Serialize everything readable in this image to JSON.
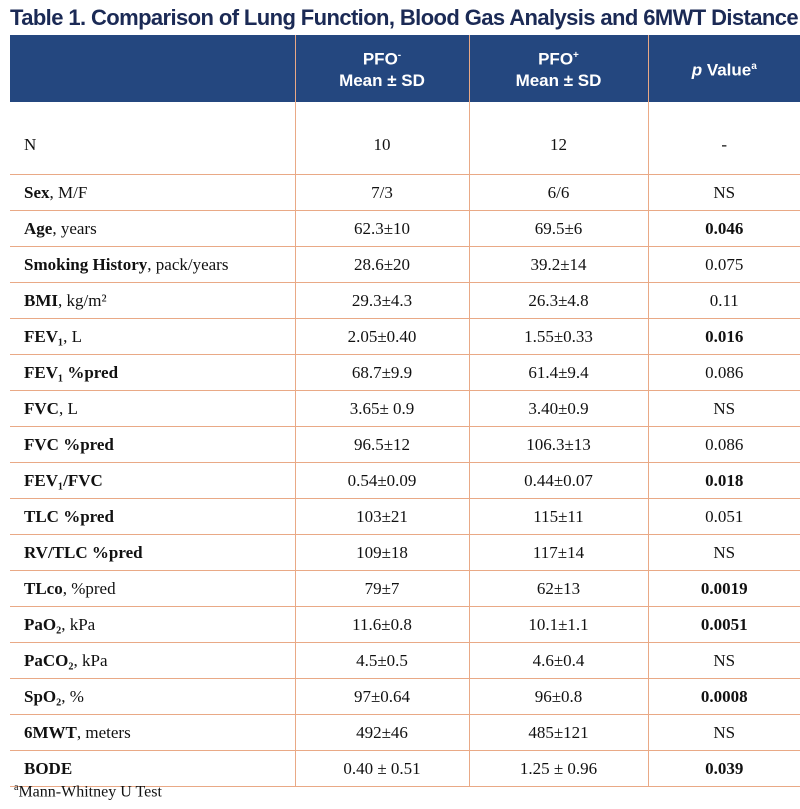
{
  "title": "Table 1. Comparison of Lung Function, Blood Gas Analysis and 6MWT Distance",
  "headers": {
    "col1_line1": "PFO",
    "col1_sup": "-",
    "col1_line2": "Mean ± SD",
    "col2_line1": "PFO",
    "col2_sup": "+",
    "col2_line2": "Mean ± SD",
    "col3_italic": "p",
    "col3_text": " Value",
    "col3_sup": "a"
  },
  "rows": [
    {
      "bold": "",
      "rest": "N",
      "a": "10",
      "b": "12",
      "p": "-",
      "sig": false
    },
    {
      "bold": "Sex",
      "rest": ", M/F",
      "a": "7/3",
      "b": "6/6",
      "p": "NS",
      "sig": false
    },
    {
      "bold": "Age",
      "rest": ", years",
      "a": "62.3±10",
      "b": "69.5±6",
      "p": "0.046",
      "sig": true
    },
    {
      "bold": "Smoking History",
      "rest": ", pack/years",
      "a": "28.6±20",
      "b": "39.2±14",
      "p": "0.075",
      "sig": false
    },
    {
      "bold": "BMI",
      "rest": ", kg/m²",
      "a": "29.3±4.3",
      "b": "26.3±4.8",
      "p": "0.11",
      "sig": false
    },
    {
      "bold": "FEV₁",
      "rest": ", L",
      "a": "2.05±0.40",
      "b": "1.55±0.33",
      "p": "0.016",
      "sig": true
    },
    {
      "bold": "FEV₁ %pred",
      "rest": "",
      "a": "68.7±9.9",
      "b": "61.4±9.4",
      "p": "0.086",
      "sig": false
    },
    {
      "bold": "FVC",
      "rest": ", L",
      "a": "3.65± 0.9",
      "b": "3.40±0.9",
      "p": "NS",
      "sig": false
    },
    {
      "bold": "FVC %pred",
      "rest": "",
      "a": "96.5±12",
      "b": "106.3±13",
      "p": "0.086",
      "sig": false
    },
    {
      "bold": "FEV₁/FVC",
      "rest": "",
      "a": "0.54±0.09",
      "b": "0.44±0.07",
      "p": "0.018",
      "sig": true
    },
    {
      "bold": "TLC %pred",
      "rest": "",
      "a": "103±21",
      "b": "115±11",
      "p": "0.051",
      "sig": false
    },
    {
      "bold": "RV/TLC %pred",
      "rest": "",
      "a": "109±18",
      "b": "117±14",
      "p": "NS",
      "sig": false
    },
    {
      "bold": "TLco",
      "rest": ", %pred",
      "a": "79±7",
      "b": "62±13",
      "p": "0.0019",
      "sig": true
    },
    {
      "bold": "PaO₂",
      "rest": ", kPa",
      "a": "11.6±0.8",
      "b": "10.1±1.1",
      "p": "0.0051",
      "sig": true
    },
    {
      "bold": "PaCO₂",
      "rest": ", kPa",
      "a": "4.5±0.5",
      "b": "4.6±0.4",
      "p": "NS",
      "sig": false
    },
    {
      "bold": "SpO₂",
      "rest": ", %",
      "a": "97±0.64",
      "b": "96±0.8",
      "p": "0.0008",
      "sig": true
    },
    {
      "bold": "6MWT",
      "rest": ", meters",
      "a": "492±46",
      "b": "485±121",
      "p": "NS",
      "sig": false
    },
    {
      "bold": "BODE",
      "rest": "",
      "a": "0.40 ± 0.51",
      "b": "1.25 ± 0.96",
      "p": "0.039",
      "sig": true
    }
  ],
  "footnote": {
    "sup": "a",
    "text": "Mann-Whitney U Test"
  }
}
